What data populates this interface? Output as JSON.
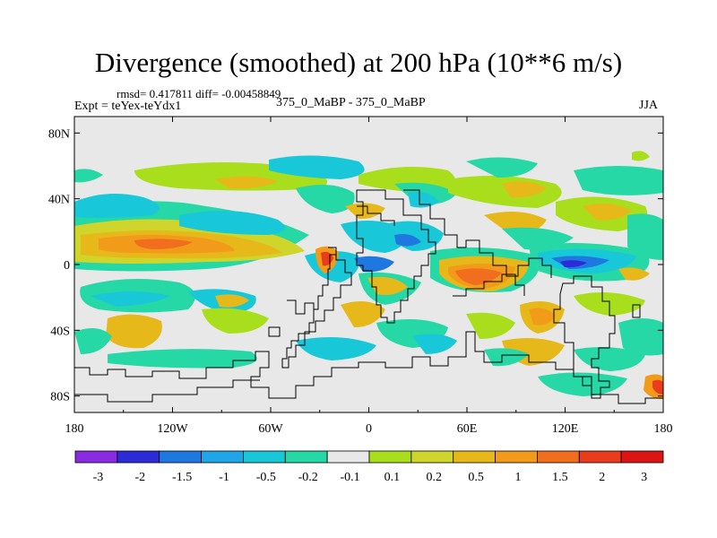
{
  "title": "Divergence (smoothed) at 200 hPa (10**6 m/s)",
  "stats_text": "rmsd= 0.417811 diff= -0.00458849",
  "experiment_text": "Expt = teYex-teYdx1",
  "runs_text": "375_0_MaBP - 375_0_MaBP",
  "season": "JJA",
  "x_ticks": [
    "180",
    "120W",
    "60W",
    "0",
    "60E",
    "120E",
    "180"
  ],
  "y_ticks": [
    "80N",
    "40N",
    "0",
    "40S",
    "80S"
  ],
  "colorbar": {
    "labels": [
      "-3",
      "-2",
      "-1.5",
      "-1",
      "-0.5",
      "-0.2",
      "-0.1",
      "0.1",
      "0.2",
      "0.5",
      "1",
      "1.5",
      "2",
      "3"
    ],
    "colors": [
      "#8a2be2",
      "#2b2bd8",
      "#1e78e0",
      "#1fa6e6",
      "#19c8d8",
      "#25d8a6",
      "#e8e8e8",
      "#a8de1c",
      "#cfd52a",
      "#e6b81a",
      "#f29a1a",
      "#f06e1e",
      "#e83c1c",
      "#dd1414"
    ]
  },
  "field_colors": {
    "background": "#e8e8e8",
    "cyan": "#19c8d8",
    "teal": "#25d8a6",
    "lime": "#a8de1c",
    "olive": "#cfd52a",
    "amber": "#e6b81a",
    "orange": "#f29a1a",
    "red_orange": "#f06e1e",
    "red": "#e83c1c",
    "blue": "#1e78e0",
    "dark_blue": "#2b2bd8"
  }
}
